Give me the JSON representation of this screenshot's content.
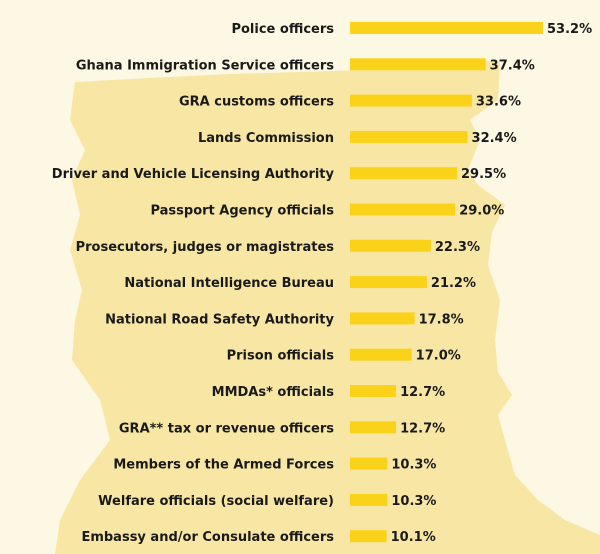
{
  "colors": {
    "background": "#fdf8e4",
    "map_silhouette": "#f8e7a4",
    "bar": "#fbd21a",
    "text": "#1a1a1a"
  },
  "chart_data": {
    "type": "bar",
    "orientation": "horizontal",
    "title": "",
    "xlabel": "",
    "ylabel": "",
    "value_suffix": "%",
    "xlim": [
      0,
      53.2
    ],
    "grid": false,
    "legend": "none",
    "categories": [
      "Police officers",
      "Ghana Immigration Service officers",
      "GRA customs officers",
      "Lands Commission",
      "Driver and Vehicle Licensing Authority",
      "Passport Agency officials",
      "Prosecutors, judges or magistrates",
      "National Intelligence Bureau",
      "National Road Safety Authority",
      "Prison officials",
      "MMDAs* officials",
      "GRA** tax or revenue officers",
      "Members of the Armed Forces",
      "Welfare officials (social welfare)",
      "Embassy and/or Consulate officers"
    ],
    "values": [
      53.2,
      37.4,
      33.6,
      32.4,
      29.5,
      29.0,
      22.3,
      21.2,
      17.8,
      17.0,
      12.7,
      12.7,
      10.3,
      10.3,
      10.1
    ],
    "value_labels": [
      "53.2%",
      "37.4%",
      "33.6%",
      "32.4%",
      "29.5%",
      "29.0%",
      "22.3%",
      "21.2%",
      "17.8%",
      "17.0%",
      "12.7%",
      "12.7%",
      "10.3%",
      "10.3%",
      "10.1%"
    ]
  }
}
